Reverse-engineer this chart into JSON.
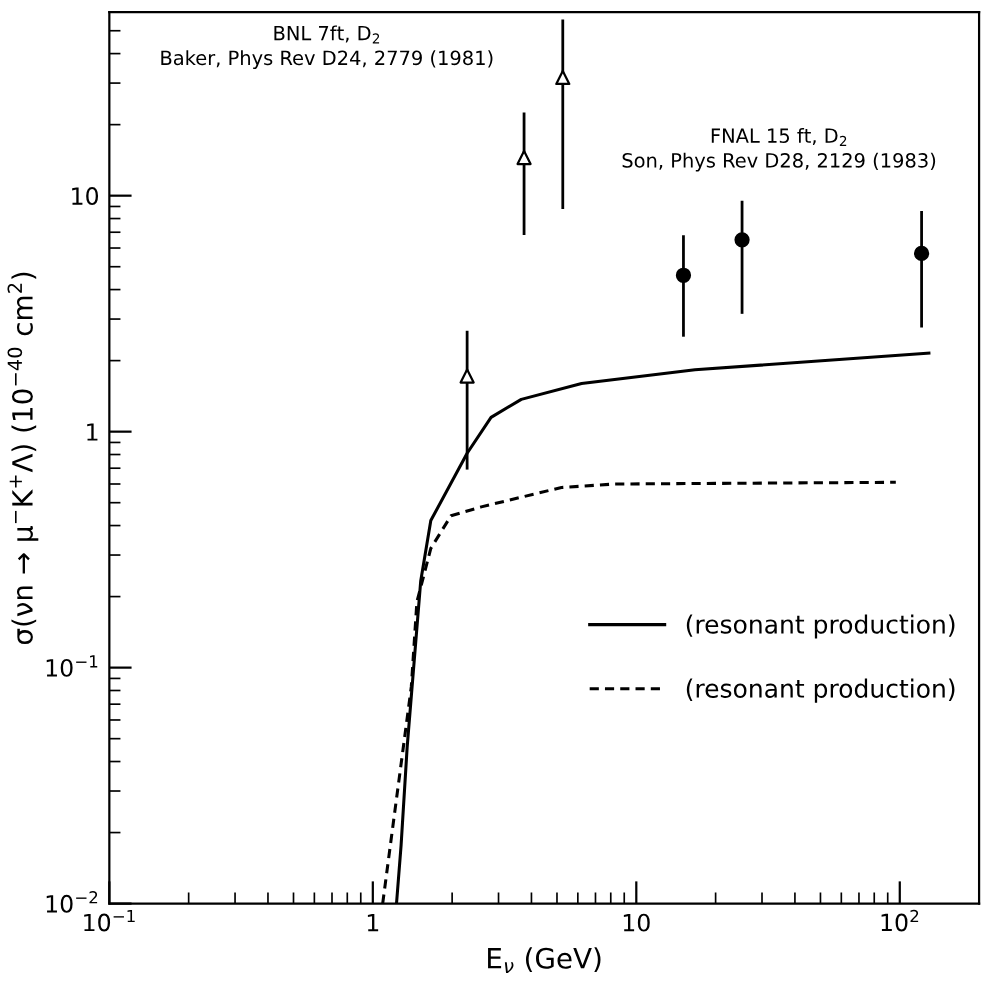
{
  "chart_data": {
    "type": "line",
    "xlabel": "E$_{ν}$ (GeV)",
    "ylabel": "σ(νn → μ$^{−}$K$^{+}$Λ) (10$^{−40}$ cm$^{2}$)",
    "log": "xy",
    "xlim": [
      0.1,
      200
    ],
    "ylim": [
      0.01,
      60
    ],
    "xticks": [
      {
        "value": 0.1,
        "label": "10$^{−1}$"
      },
      1,
      10,
      {
        "value": 100,
        "label": "10$^{2}$"
      }
    ],
    "yticks": [
      {
        "value": 0.01,
        "label": "10$^{−2}$"
      },
      {
        "value": 0.1,
        "label": "10$^{−1}$"
      },
      1,
      10
    ],
    "grid": false,
    "legend": "bottom right",
    "annotations": [
      "BNL 7ft, D$_{2}$\nBaker, Phys Rev D24, 2779 (1981)",
      "FNAL 15 ft, D$_{2}$\nSon, Phys Rev D28, 2129 (1983)"
    ],
    "series": [
      {
        "name": "(resonant production)",
        "line_style": "solid",
        "color": "#000000",
        "x": [
          1.23,
          1.28,
          1.35,
          1.52,
          1.66,
          2.28,
          2.81,
          3.66,
          6.2,
          16.7,
          129
        ],
        "values": [
          0.01,
          0.0176,
          0.046,
          0.233,
          0.42,
          0.81,
          1.15,
          1.37,
          1.6,
          1.83,
          2.15
        ]
      },
      {
        "name": "(resonant production)",
        "line_style": "dashed",
        "color": "#000000",
        "x": [
          1.09,
          1.2,
          1.4,
          1.47,
          1.66,
          1.98,
          2.58,
          5.2,
          8.3,
          96.6
        ],
        "values": [
          0.01,
          0.0226,
          0.083,
          0.19,
          0.32,
          0.44,
          0.48,
          0.58,
          0.6,
          0.61
        ]
      },
      {
        "type": "scatter",
        "marker": "triangle",
        "color": "#000000",
        "x": [
          2.28,
          3.75,
          5.26
        ],
        "values": [
          1.72,
          14.5,
          31.7
        ],
        "errors": [
          [
            0.7,
            2.64
          ],
          [
            6.9,
            22.2
          ],
          [
            8.9,
            55
          ]
        ]
      },
      {
        "type": "scatter",
        "marker": "circle",
        "color": "#000000",
        "x": [
          15.1,
          25.2,
          121
        ],
        "values": [
          4.6,
          6.5,
          5.7
        ],
        "errors": [
          [
            2.56,
            6.7
          ],
          [
            3.2,
            9.4
          ],
          [
            2.8,
            8.5
          ]
        ]
      }
    ]
  }
}
